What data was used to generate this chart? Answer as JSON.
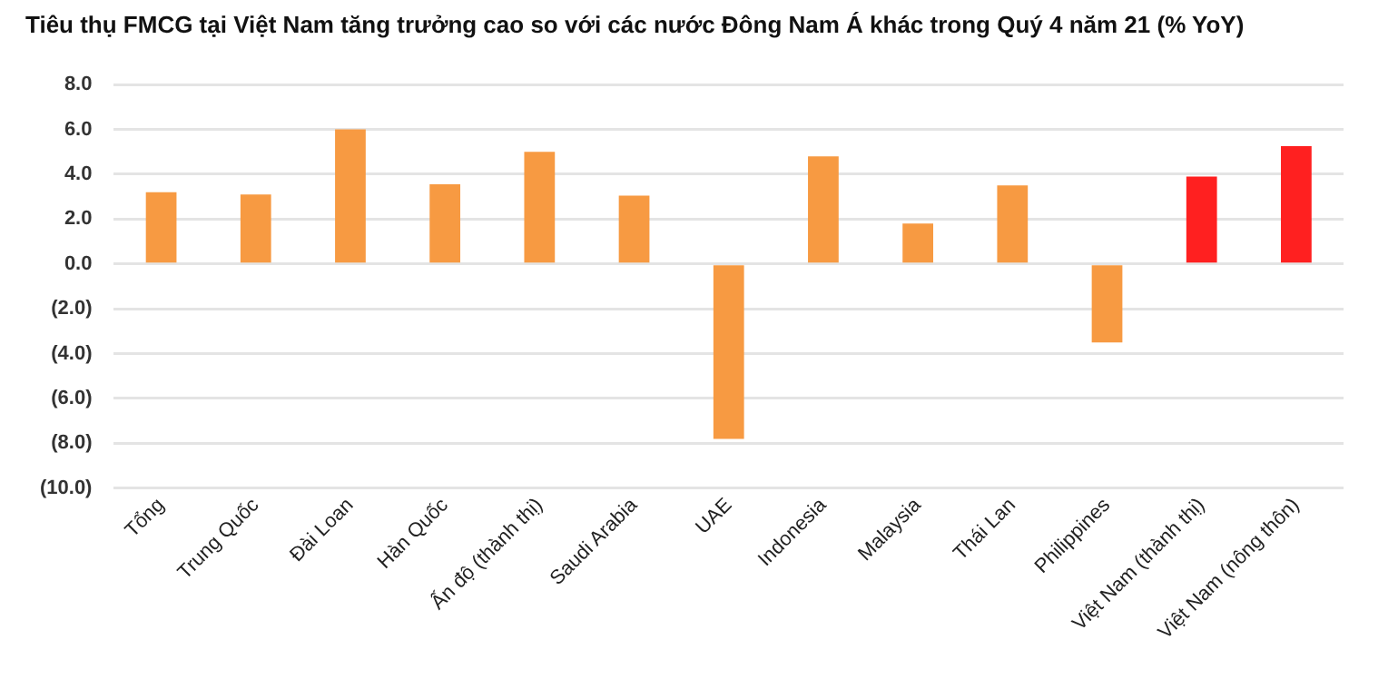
{
  "chart_data": {
    "type": "bar",
    "title": "Tiêu thụ FMCG tại Việt Nam tăng trưởng cao so với các nước Đông Nam Á khác trong Quý 4 năm 21 (% YoY)",
    "categories": [
      "Tổng",
      "Trung Quốc",
      "Đài Loan",
      "Hàn Quốc",
      "Ấn độ (thành thị)",
      "Saudi Arabia",
      "UAE",
      "Indonesia",
      "Malaysia",
      "Thái Lan",
      "Philippines",
      "Việt Nam (thành thị)",
      "Việt Nam (nông thôn)"
    ],
    "values": [
      3.2,
      3.1,
      6.0,
      3.55,
      5.0,
      3.05,
      -7.8,
      4.8,
      1.8,
      3.5,
      -3.5,
      3.9,
      5.25
    ],
    "colors": [
      "#f79a42",
      "#f79a42",
      "#f79a42",
      "#f79a42",
      "#f79a42",
      "#f79a42",
      "#f79a42",
      "#f79a42",
      "#f79a42",
      "#f79a42",
      "#f79a42",
      "#ff2020",
      "#ff2020"
    ],
    "ylim": [
      -10,
      8
    ],
    "yticks": [
      {
        "value": -10,
        "label": "(10.0)"
      },
      {
        "value": -8,
        "label": "(8.0)"
      },
      {
        "value": -6,
        "label": "(6.0)"
      },
      {
        "value": -4,
        "label": "(4.0)"
      },
      {
        "value": -2,
        "label": "(2.0)"
      },
      {
        "value": 0,
        "label": "0.0"
      },
      {
        "value": 2,
        "label": "2.0"
      },
      {
        "value": 4,
        "label": "4.0"
      },
      {
        "value": 6,
        "label": "6.0"
      },
      {
        "value": 8,
        "label": "8.0"
      }
    ],
    "grid": "y",
    "legend": false
  }
}
